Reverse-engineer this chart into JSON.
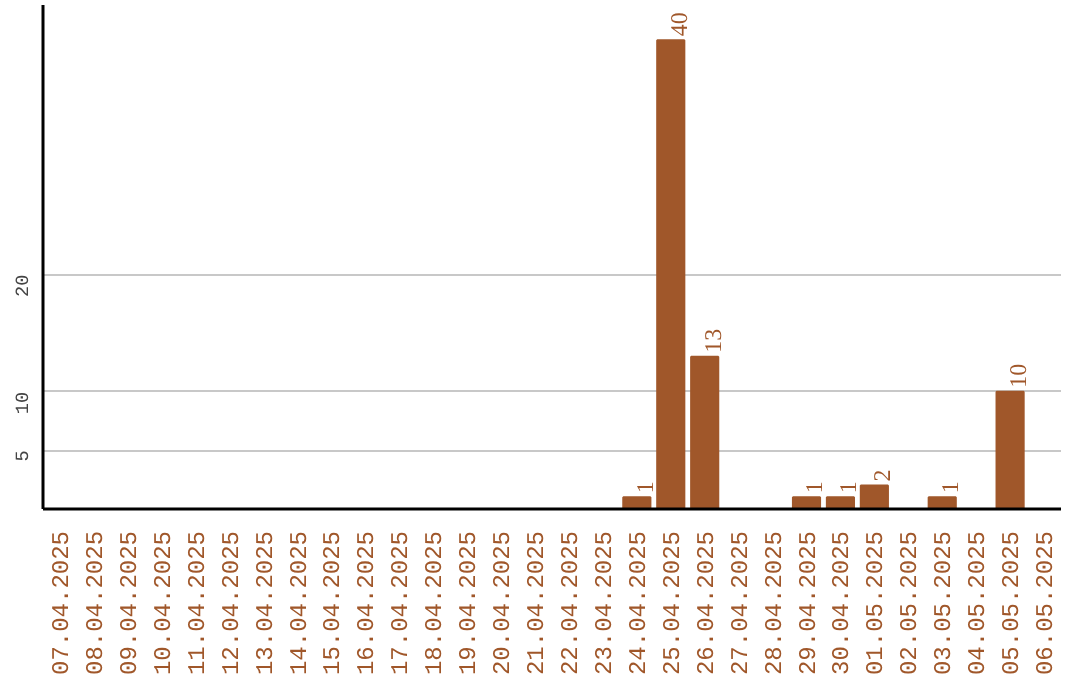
{
  "chart_data": {
    "type": "bar",
    "categories": [
      "07.04.2025",
      "08.04.2025",
      "09.04.2025",
      "10.04.2025",
      "11.04.2025",
      "12.04.2025",
      "13.04.2025",
      "14.04.2025",
      "15.04.2025",
      "16.04.2025",
      "17.04.2025",
      "18.04.2025",
      "19.04.2025",
      "20.04.2025",
      "21.04.2025",
      "22.04.2025",
      "23.04.2025",
      "24.04.2025",
      "25.04.2025",
      "26.04.2025",
      "27.04.2025",
      "28.04.2025",
      "29.04.2025",
      "30.04.2025",
      "01.05.2025",
      "02.05.2025",
      "03.05.2025",
      "04.05.2025",
      "05.05.2025",
      "06.05.2025"
    ],
    "values": [
      0,
      0,
      0,
      0,
      0,
      0,
      0,
      0,
      0,
      0,
      0,
      0,
      0,
      0,
      0,
      0,
      0,
      1,
      40,
      13,
      0,
      0,
      1,
      1,
      2,
      0,
      1,
      0,
      10,
      0
    ],
    "value_labels": [
      null,
      null,
      null,
      null,
      null,
      null,
      null,
      null,
      null,
      null,
      null,
      null,
      null,
      null,
      null,
      null,
      null,
      "1",
      "40",
      "13",
      null,
      null,
      "1",
      "1",
      "2",
      null,
      "1",
      null,
      "10",
      null
    ],
    "color": "#a0572a",
    "ylim": [
      0,
      43
    ],
    "yticks": [
      5,
      10,
      20
    ],
    "grid": "y"
  }
}
